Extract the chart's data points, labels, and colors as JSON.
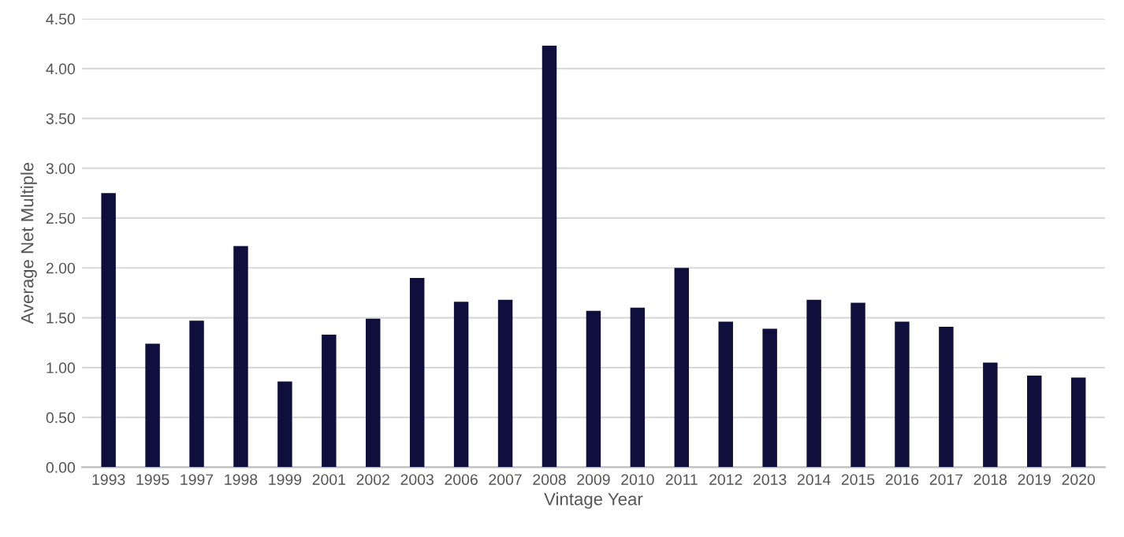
{
  "chart_data": {
    "type": "bar",
    "xlabel": "Vintage Year",
    "ylabel": "Average Net Multiple",
    "categories": [
      "1993",
      "1995",
      "1997",
      "1998",
      "1999",
      "2001",
      "2002",
      "2003",
      "2006",
      "2007",
      "2008",
      "2009",
      "2010",
      "2011",
      "2012",
      "2013",
      "2014",
      "2015",
      "2016",
      "2017",
      "2018",
      "2019",
      "2020"
    ],
    "values": [
      2.75,
      1.24,
      1.47,
      2.22,
      0.86,
      1.33,
      1.49,
      1.9,
      1.66,
      1.68,
      4.23,
      1.57,
      1.6,
      2.0,
      1.46,
      1.39,
      1.68,
      1.65,
      1.46,
      1.41,
      1.05,
      0.92,
      0.9
    ],
    "color": "#0f0f3d",
    "ylim": [
      0,
      4.5
    ],
    "yticks": [
      {
        "value": 0,
        "label": "0.00"
      },
      {
        "value": 0.5,
        "label": "0.50"
      },
      {
        "value": 1,
        "label": "1.00"
      },
      {
        "value": 1.5,
        "label": "1.50"
      },
      {
        "value": 2,
        "label": "2.00"
      },
      {
        "value": 2.5,
        "label": "2.50"
      },
      {
        "value": 3,
        "label": "3.00"
      },
      {
        "value": 3.5,
        "label": "3.50"
      },
      {
        "value": 4,
        "label": "4.00"
      },
      {
        "value": 4.5,
        "label": "4.50"
      }
    ],
    "grid": "y",
    "legend": false
  }
}
